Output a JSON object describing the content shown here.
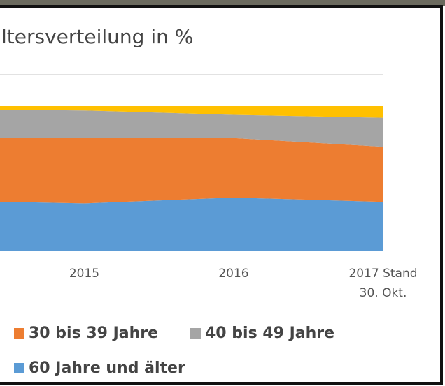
{
  "chart_data": {
    "type": "area",
    "title": "ltersverteilung in %",
    "categories": [
      null,
      "2015",
      "2016",
      "2017 Stand 30. Okt."
    ],
    "stacked": true,
    "ylim": [
      0,
      100
    ],
    "series": [
      {
        "name": "60 Jahre und älter",
        "color": "#5b9bd5",
        "values": [
          35,
          33,
          37,
          34
        ]
      },
      {
        "name": "30 bis 39 Jahre",
        "color": "#ed7d31",
        "values": [
          43,
          45,
          41,
          38
        ]
      },
      {
        "name": "40 bis 49 Jahre",
        "color": "#a5a5a5",
        "values": [
          20,
          19,
          16,
          20
        ]
      },
      {
        "color": "#ffc000",
        "values": [
          2,
          3,
          6,
          8
        ]
      }
    ]
  }
}
